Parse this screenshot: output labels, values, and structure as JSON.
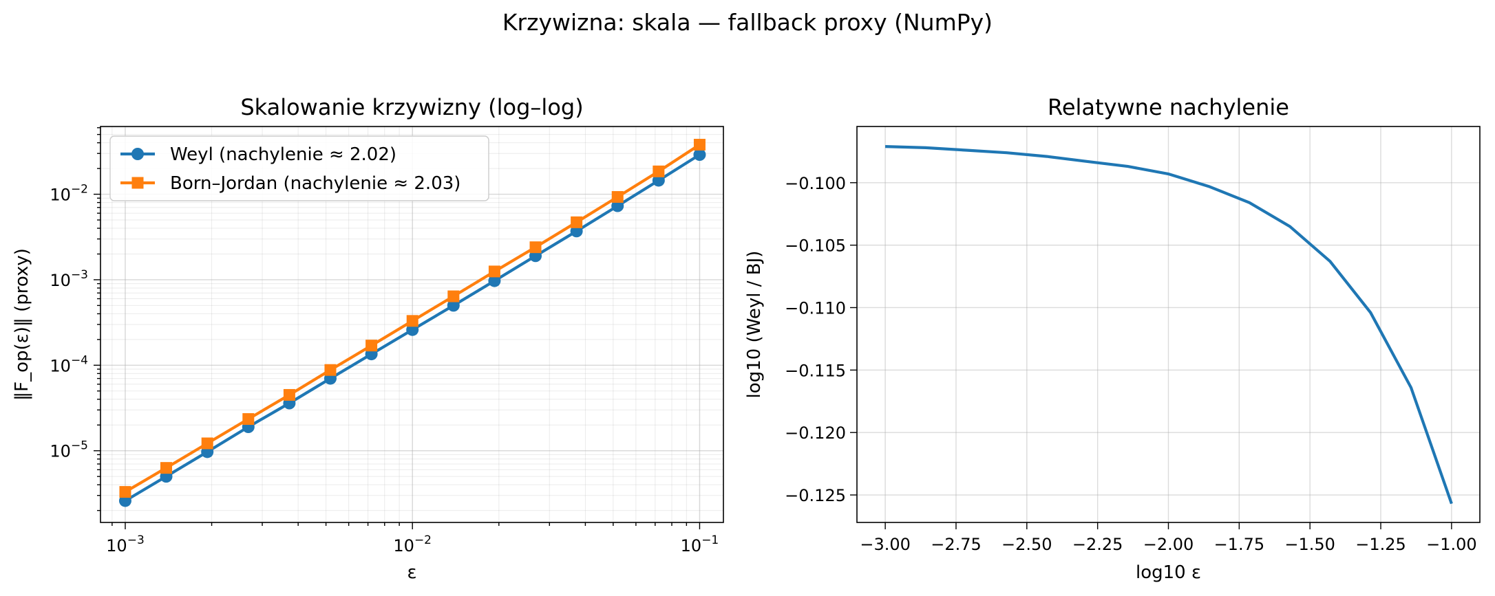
{
  "figure": {
    "suptitle": "Krzywizna: skala — fallback proxy (NumPy)"
  },
  "colors": {
    "weyl": "#1f77b4",
    "bj": "#ff7f0e",
    "grid": "#b0b0b0"
  },
  "chart_data": [
    {
      "type": "line",
      "title": "Skalowanie krzywizny (log–log)",
      "xlabel": "ε",
      "ylabel": "‖F_op(ε)‖ (proxy)",
      "xscale": "log",
      "yscale": "log",
      "xlim": [
        0.00082,
        0.121
      ],
      "ylim": [
        1.45e-06,
        0.062
      ],
      "grid": "on (major and minor)",
      "legend_position": "upper-left",
      "xtick_labels": [
        {
          "base": "10",
          "exp": "−3",
          "value": 0.001
        },
        {
          "base": "10",
          "exp": "−2",
          "value": 0.01
        },
        {
          "base": "10",
          "exp": "−1",
          "value": 0.1
        }
      ],
      "ytick_labels": [
        {
          "base": "10",
          "exp": "−5",
          "value": 1e-05
        },
        {
          "base": "10",
          "exp": "−4",
          "value": 0.0001
        },
        {
          "base": "10",
          "exp": "−3",
          "value": 0.001
        },
        {
          "base": "10",
          "exp": "−2",
          "value": 0.01
        }
      ],
      "x": [
        0.001,
        0.001389,
        0.001931,
        0.002683,
        0.003728,
        0.005179,
        0.007197,
        0.01,
        0.013895,
        0.019307,
        0.026827,
        0.037276,
        0.051795,
        0.071969,
        0.1
      ],
      "series": [
        {
          "name": "Weyl (nachylenie ≈ 2.02)",
          "marker": "circle",
          "color": "#1f77b4",
          "values": [
            2.6e-06,
            5e-06,
            9.7e-06,
            1.9e-05,
            3.6e-05,
            7e-05,
            0.000135,
            0.00026,
            0.0005,
            0.00097,
            0.0019,
            0.0037,
            0.0073,
            0.0145,
            0.029
          ]
        },
        {
          "name": "Born–Jordan (nachylenie ≈ 2.03)",
          "marker": "square",
          "color": "#ff7f0e",
          "values": [
            3.3e-06,
            6.3e-06,
            1.22e-05,
            2.35e-05,
            4.5e-05,
            8.8e-05,
            0.00017,
            0.00033,
            0.00064,
            0.00125,
            0.0024,
            0.0047,
            0.0093,
            0.0185,
            0.038
          ]
        }
      ]
    },
    {
      "type": "line",
      "title": "Relatywne nachylenie",
      "xlabel": "log10 ε",
      "ylabel": "log10 (Weyl / BJ)",
      "xlim": [
        -3.1,
        -0.9
      ],
      "ylim": [
        -0.1272,
        -0.0955
      ],
      "grid": "on",
      "xticks": [
        -3.0,
        -2.75,
        -2.5,
        -2.25,
        -2.0,
        -1.75,
        -1.5,
        -1.25,
        -1.0
      ],
      "xtick_labels": [
        "−3.00",
        "−2.75",
        "−2.50",
        "−2.25",
        "−2.00",
        "−1.75",
        "−1.50",
        "−1.25",
        "−1.00"
      ],
      "yticks": [
        -0.1,
        -0.105,
        -0.11,
        -0.115,
        -0.12,
        -0.125
      ],
      "ytick_labels": [
        "−0.100",
        "−0.105",
        "−0.110",
        "−0.115",
        "−0.120",
        "−0.125"
      ],
      "x": [
        -3.0,
        -2.857,
        -2.714,
        -2.571,
        -2.429,
        -2.286,
        -2.143,
        -2.0,
        -1.857,
        -1.714,
        -1.571,
        -1.429,
        -1.286,
        -1.143,
        -1.0
      ],
      "series": [
        {
          "color": "#1f77b4",
          "values": [
            -0.0971,
            -0.0972,
            -0.0974,
            -0.0976,
            -0.0979,
            -0.0983,
            -0.0987,
            -0.0993,
            -0.1003,
            -0.1016,
            -0.1035,
            -0.1063,
            -0.1104,
            -0.1164,
            -0.1257
          ]
        }
      ]
    }
  ]
}
